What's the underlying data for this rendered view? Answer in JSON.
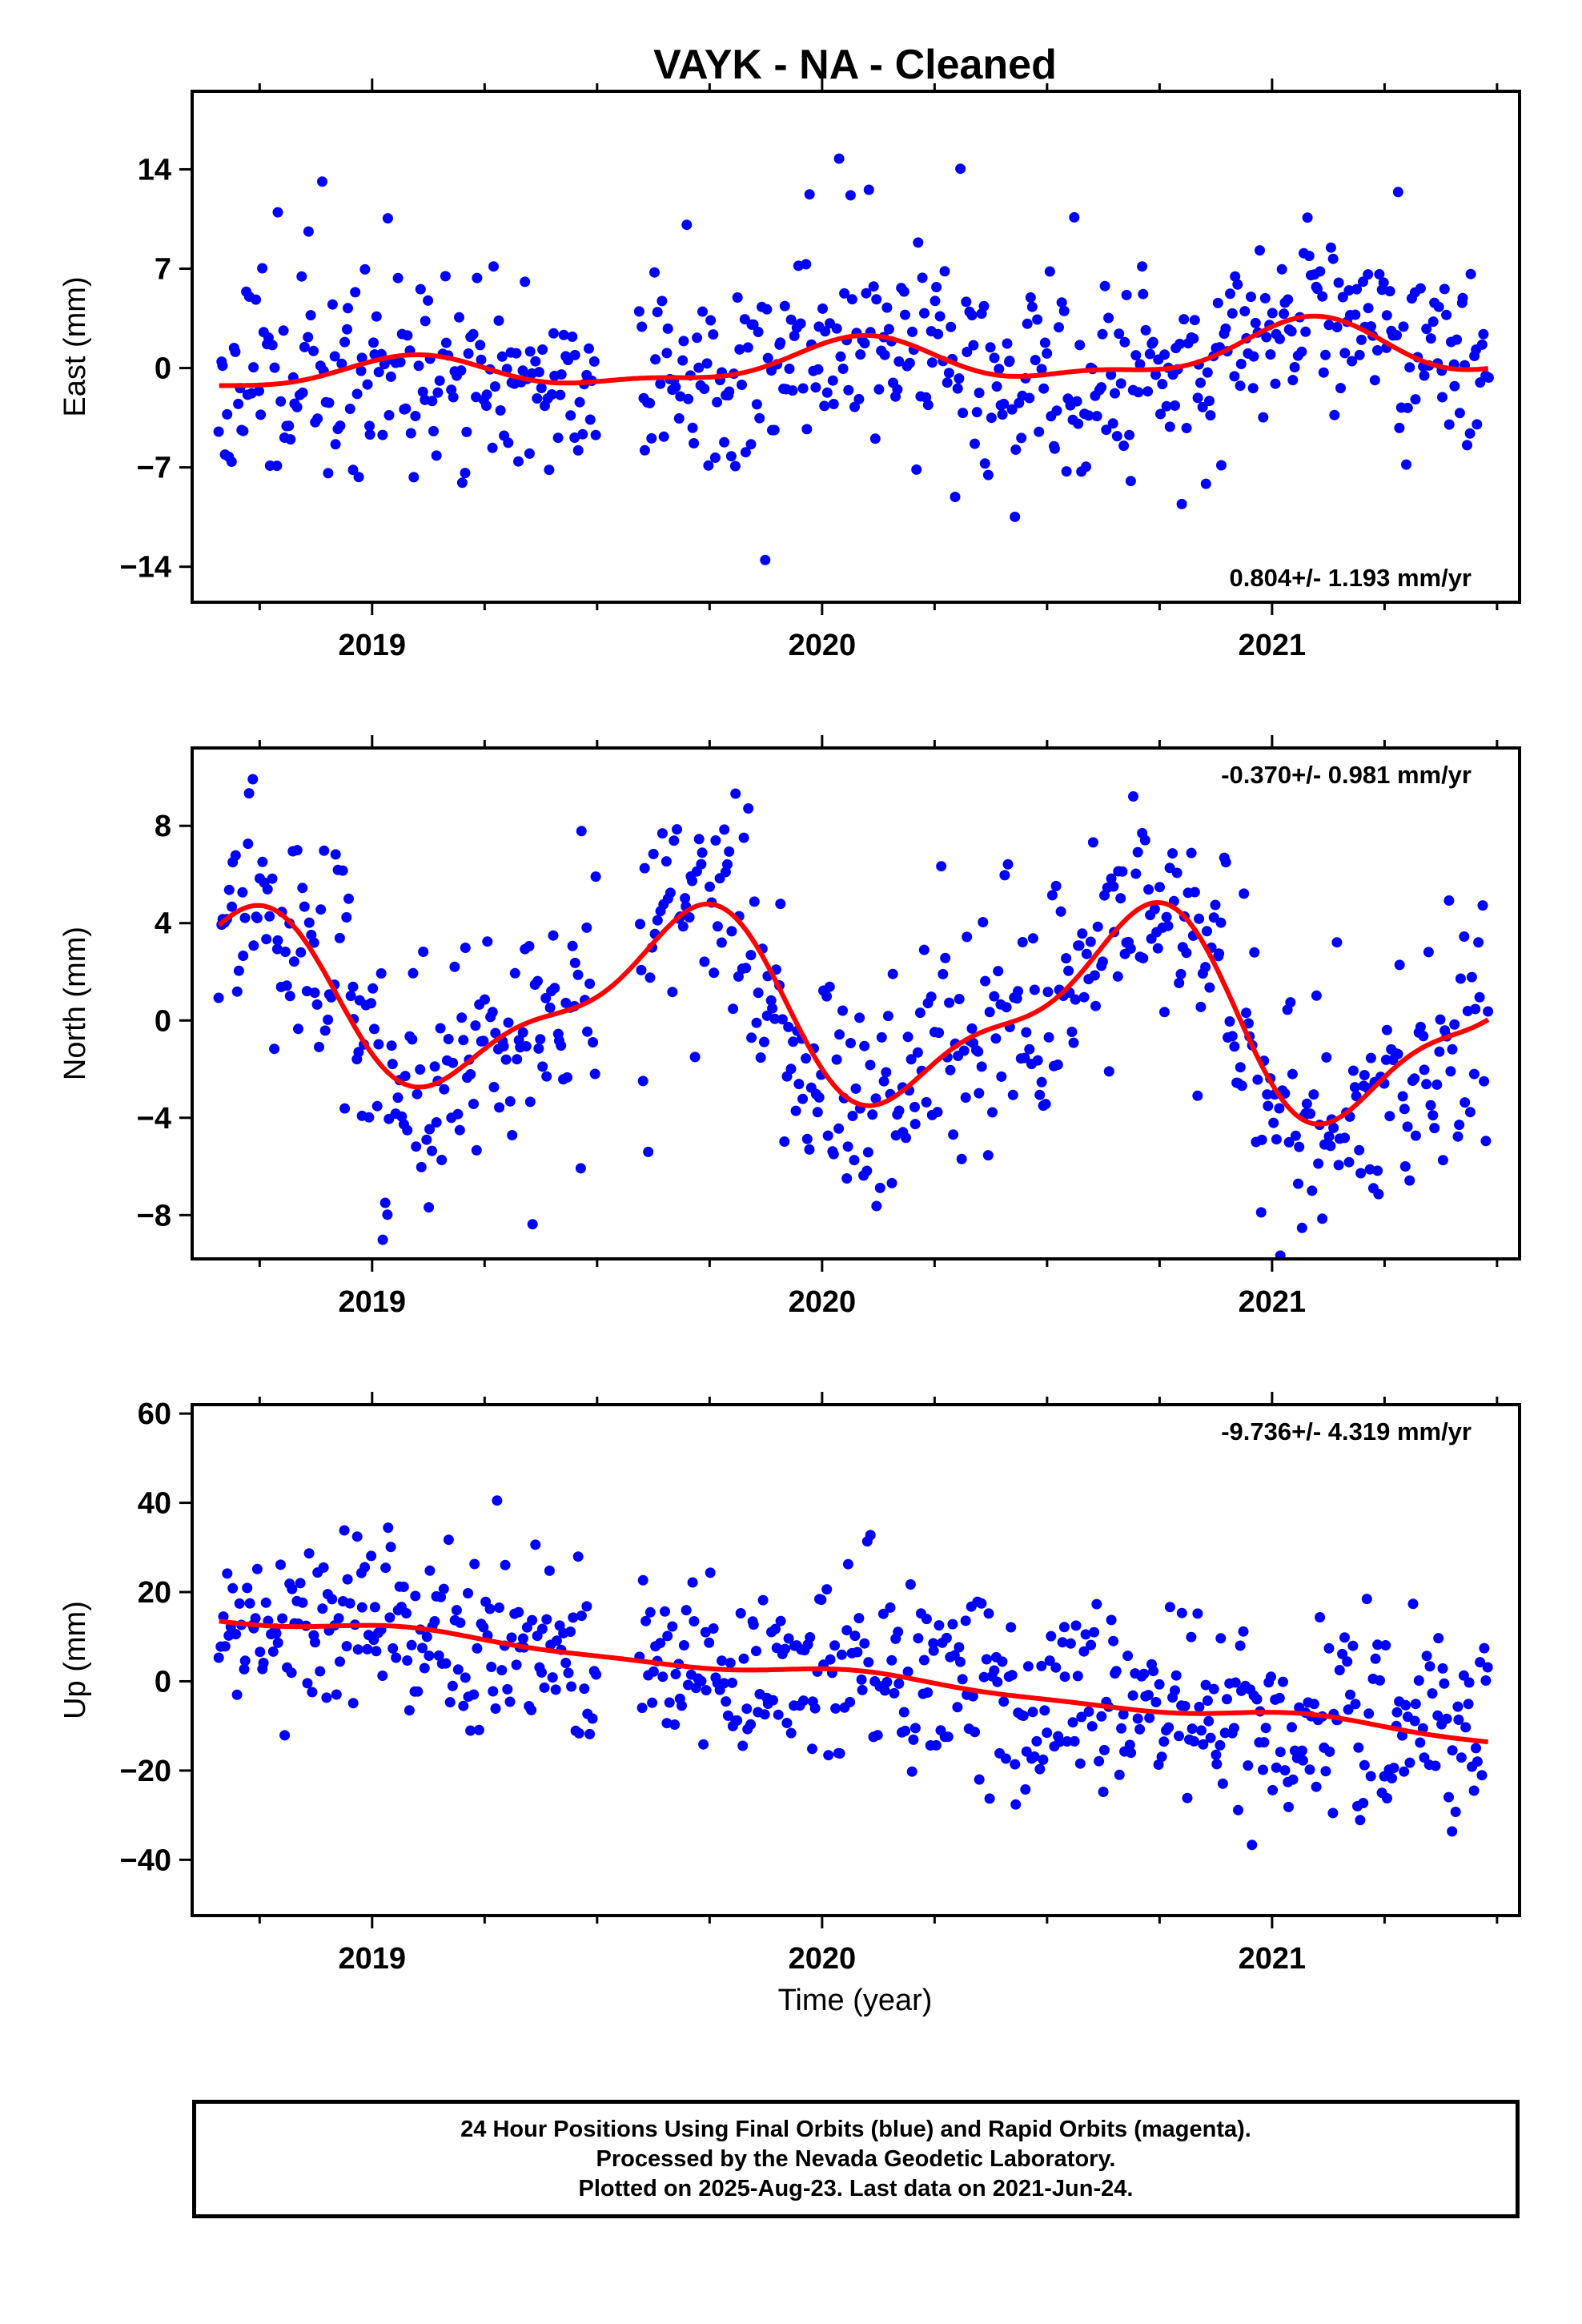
{
  "chart_data": {
    "type": "scatter",
    "title": "VAYK  - NA - Cleaned",
    "xlabel": "Time (year)",
    "xlim": [
      2018.6,
      2021.55
    ],
    "x_ticks": [
      {
        "value": 2019,
        "label": "2019"
      },
      {
        "value": 2020,
        "label": "2020"
      },
      {
        "value": 2021,
        "label": "2021"
      }
    ],
    "minor_x_step": 0.25,
    "marker_color": "#0000ff",
    "fit_color": "#ff0000",
    "panels": [
      {
        "name": "east",
        "ylabel": "East (mm)",
        "ylim": [
          -16.5,
          19.5
        ],
        "yticks": [
          {
            "value": -14,
            "label": "−14"
          },
          {
            "value": -7,
            "label": "−7"
          },
          {
            "value": 0,
            "label": "0"
          },
          {
            "value": 7,
            "label": "7"
          },
          {
            "value": 14,
            "label": "14"
          }
        ],
        "rate_label": "0.804+/- 1.193 mm/yr",
        "rate_position": "bottom-right",
        "model": {
          "base": 0.3,
          "rate": 0.8,
          "annual": [
            0.6,
            1.2
          ],
          "semiannual": [
            0.5,
            0.2
          ],
          "seasonal_growth": 0.3,
          "ref": 2020.0
        },
        "sample_scatter": 3.4,
        "sample_outlier_amp": 8,
        "sample_seed": 11
      },
      {
        "name": "north",
        "ylabel": "North (mm)",
        "ylim": [
          -9.8,
          11.2
        ],
        "yticks": [
          {
            "value": -8,
            "label": "−8"
          },
          {
            "value": -4,
            "label": "−4"
          },
          {
            "value": 0,
            "label": "0"
          },
          {
            "value": 4,
            "label": "4"
          },
          {
            "value": 8,
            "label": "8"
          }
        ],
        "rate_label": "-0.370+/- 0.981 mm/yr",
        "rate_position": "top-right",
        "model": {
          "base": 0.5,
          "rate": -0.37,
          "annual": [
            -3.2,
            -1.4
          ],
          "semiannual": [
            -0.6,
            -1.1
          ],
          "seasonal_growth": 0.1,
          "ref": 2020.0
        },
        "sample_scatter": 2.3,
        "sample_outlier_amp": 4,
        "sample_seed": 23
      },
      {
        "name": "up",
        "ylabel": "Up (mm)",
        "ylim": [
          -52.5,
          62
        ],
        "yticks": [
          {
            "value": -40,
            "label": "−40"
          },
          {
            "value": -20,
            "label": "−20"
          },
          {
            "value": 0,
            "label": "0"
          },
          {
            "value": 20,
            "label": "20"
          },
          {
            "value": 40,
            "label": "40"
          },
          {
            "value": 60,
            "label": "60"
          }
        ],
        "rate_label": "-9.736+/- 4.319 mm/yr",
        "rate_position": "top-right",
        "model": {
          "base": 1.5,
          "rate": -9.736,
          "annual": [
            0.8,
            1.0
          ],
          "semiannual": [
            0.3,
            0.3
          ],
          "seasonal_growth": 0.0,
          "ref": 2020.0
        },
        "sample_scatter": 10.5,
        "sample_outlier_amp": 18,
        "sample_seed": 37
      }
    ],
    "sample_range": [
      2018.66,
      2021.48
    ],
    "sample_count": 620,
    "sample_gap": [
      2019.5,
      2019.59
    ]
  },
  "footer": {
    "line1": "24 Hour Positions Using Final Orbits (blue) and Rapid Orbits (magenta).",
    "line2": "Processed by the Nevada Geodetic Laboratory.",
    "line3": "Plotted on 2025-Aug-23. Last data on 2021-Jun-24."
  }
}
